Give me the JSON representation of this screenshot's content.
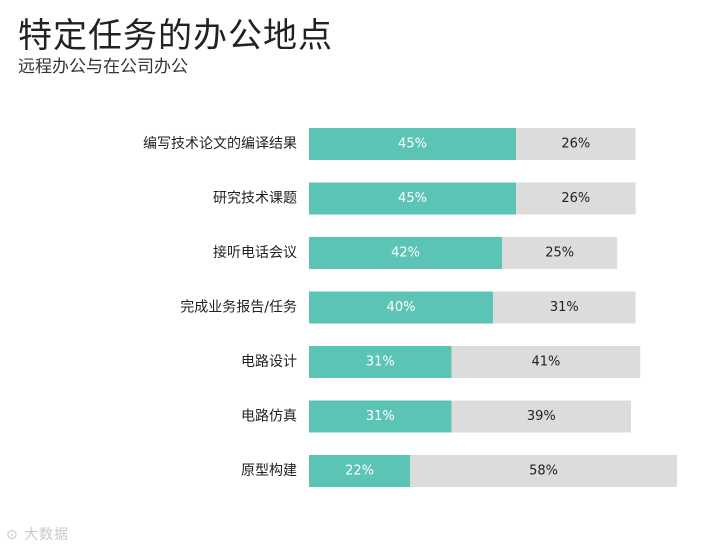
{
  "title": "特定任务的办公地点",
  "subtitle": "远程办公与在公司办公",
  "watermark": "大数据",
  "colors": {
    "series1": "#5cc4b5",
    "series2": "#dcdcdc",
    "series1_text": "#ffffff",
    "series2_text": "#222222"
  },
  "chart_data": {
    "type": "bar",
    "orientation": "horizontal",
    "stacked": true,
    "categories": [
      "编写技术论文的编译结果",
      "研究技术课题",
      "接听电话会议",
      "完成业务报告/任务",
      "电路设计",
      "电路仿真",
      "原型构建"
    ],
    "series": [
      {
        "values": [
          45,
          45,
          42,
          40,
          31,
          31,
          22
        ]
      },
      {
        "values": [
          26,
          26,
          25,
          31,
          41,
          39,
          58
        ]
      }
    ],
    "value_suffix": "%",
    "grid": false,
    "legend": "none"
  }
}
